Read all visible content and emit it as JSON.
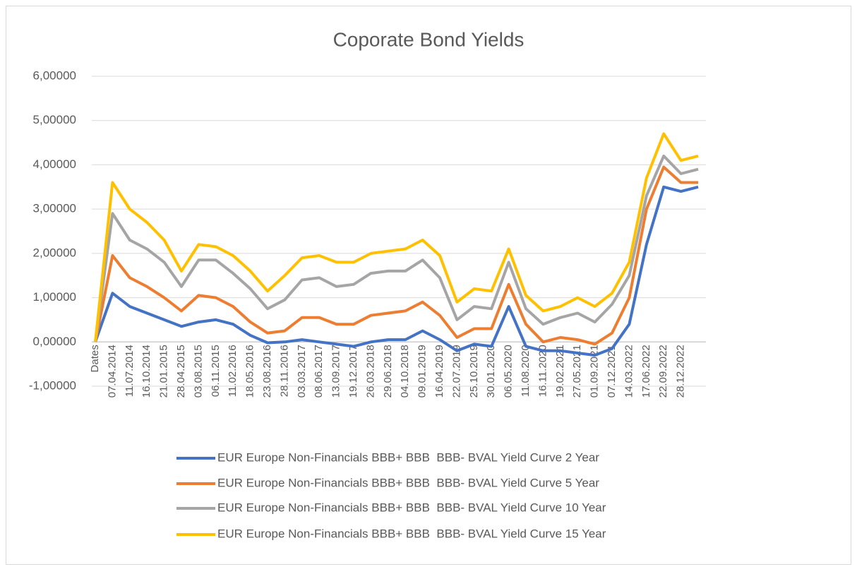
{
  "chart_data": {
    "type": "line",
    "title": "Coporate Bond Yields",
    "categories": [
      "Dates",
      "07.04.2014",
      "11.07.2014",
      "16.10.2014",
      "21.01.2015",
      "28.04.2015",
      "03.08.2015",
      "06.11.2015",
      "11.02.2016",
      "18.05.2016",
      "23.08.2016",
      "28.11.2016",
      "03.03.2017",
      "08.06.2017",
      "13.09.2017",
      "19.12.2017",
      "26.03.2018",
      "29.06.2018",
      "04.10.2018",
      "09.01.2019",
      "16.04.2019",
      "22.07.2019",
      "25.10.2019",
      "30.01.2020",
      "06.05.2020",
      "11.08.2020",
      "16.11.2020",
      "19.02.2021",
      "27.05.2021",
      "01.09.2021",
      "07.12.2021",
      "14.03.2022",
      "17.06.2022",
      "22.09.2022",
      "28.12.2022",
      null
    ],
    "series": [
      {
        "name": "EUR Europe Non-Financials BBB+ BBB  BBB- BVAL Yield Curve 2 Year",
        "color": "#4472c4",
        "values": [
          0,
          1.1,
          0.8,
          0.65,
          0.5,
          0.35,
          0.45,
          0.5,
          0.4,
          0.15,
          -0.02,
          0.0,
          0.05,
          0.0,
          -0.05,
          -0.1,
          0.0,
          0.05,
          0.05,
          0.25,
          0.05,
          -0.2,
          -0.05,
          -0.1,
          0.8,
          -0.1,
          -0.2,
          -0.2,
          -0.25,
          -0.3,
          -0.15,
          0.4,
          2.2,
          3.5,
          3.4,
          3.5
        ]
      },
      {
        "name": "EUR Europe Non-Financials BBB+ BBB  BBB- BVAL Yield Curve 5 Year",
        "color": "#ed7d31",
        "values": [
          0,
          1.95,
          1.45,
          1.25,
          1.0,
          0.7,
          1.05,
          1.0,
          0.8,
          0.45,
          0.2,
          0.25,
          0.55,
          0.55,
          0.4,
          0.4,
          0.6,
          0.65,
          0.7,
          0.9,
          0.6,
          0.1,
          0.3,
          0.3,
          1.3,
          0.4,
          0.0,
          0.1,
          0.05,
          -0.05,
          0.2,
          1.0,
          3.0,
          3.95,
          3.6,
          3.6
        ]
      },
      {
        "name": "EUR Europe Non-Financials BBB+ BBB  BBB- BVAL Yield Curve 10 Year",
        "color": "#a5a5a5",
        "values": [
          0,
          2.9,
          2.3,
          2.1,
          1.8,
          1.25,
          1.85,
          1.85,
          1.55,
          1.2,
          0.75,
          0.95,
          1.4,
          1.45,
          1.25,
          1.3,
          1.55,
          1.6,
          1.6,
          1.85,
          1.45,
          0.5,
          0.8,
          0.75,
          1.8,
          0.75,
          0.4,
          0.55,
          0.65,
          0.45,
          0.85,
          1.5,
          3.3,
          4.2,
          3.8,
          3.9
        ]
      },
      {
        "name": "EUR Europe Non-Financials BBB+ BBB  BBB- BVAL Yield Curve 15 Year",
        "color": "#ffc000",
        "values": [
          0,
          3.6,
          3.0,
          2.7,
          2.3,
          1.6,
          2.2,
          2.15,
          1.95,
          1.6,
          1.15,
          1.5,
          1.9,
          1.95,
          1.8,
          1.8,
          2.0,
          2.05,
          2.1,
          2.3,
          1.95,
          0.9,
          1.2,
          1.15,
          2.1,
          1.05,
          0.7,
          0.8,
          1.0,
          0.8,
          1.1,
          1.8,
          3.7,
          4.7,
          4.1,
          4.2
        ]
      }
    ],
    "ylim": [
      -1,
      6
    ],
    "yticks": [
      {
        "value": -1,
        "label": "-1,00000"
      },
      {
        "value": 0,
        "label": "0,00000"
      },
      {
        "value": 1,
        "label": "1,00000"
      },
      {
        "value": 2,
        "label": "2,00000"
      },
      {
        "value": 3,
        "label": "3,00000"
      },
      {
        "value": 4,
        "label": "4,00000"
      },
      {
        "value": 5,
        "label": "5,00000"
      },
      {
        "value": 6,
        "label": "6,00000"
      }
    ],
    "grid": true,
    "legend": "bottom"
  }
}
